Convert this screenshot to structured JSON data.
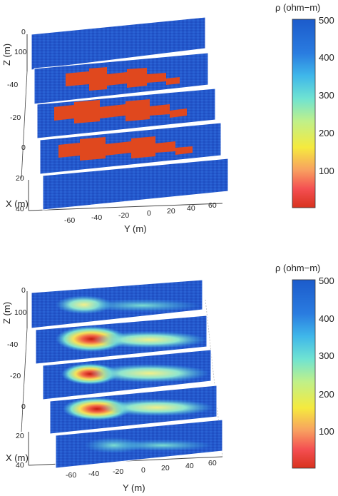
{
  "panels": [
    {
      "id": "true-model",
      "z_label": "Z (m)",
      "x_label": "X (m)",
      "y_label": "Y (m)",
      "z_ticks": [
        "0",
        "100"
      ],
      "x_ticks": [
        "-40",
        "-20",
        "0",
        "20",
        "40"
      ],
      "y_ticks": [
        "-60",
        "-40",
        "-20",
        "0",
        "20",
        "40",
        "60"
      ],
      "slices": [
        "x=40? top slice",
        "x=-40",
        "x=-20",
        "x=0",
        "x=20"
      ],
      "anomaly": "blocky resistive-low zigzag body on three middle slices"
    },
    {
      "id": "inverted-model",
      "z_label": "Z (m)",
      "x_label": "X (m)",
      "y_label": "Y (m)",
      "z_ticks": [
        "0",
        "100"
      ],
      "x_ticks": [
        "-40",
        "-20",
        "0",
        "20",
        "40"
      ],
      "y_ticks": [
        "-60",
        "-40",
        "-20",
        "0",
        "20",
        "40",
        "60"
      ],
      "anomaly": "smooth low-resistivity plume on all slices"
    }
  ],
  "colorbar": {
    "title": "ρ (ohm−m)",
    "ticks": [
      "500",
      "400",
      "300",
      "200",
      "100"
    ],
    "range": [
      0,
      500
    ],
    "colors": [
      "#d62a1c",
      "#f97860",
      "#f6e64a",
      "#7fe0c2",
      "#3fb6e6",
      "#2a6fd6",
      "#1d5ccc"
    ]
  }
}
